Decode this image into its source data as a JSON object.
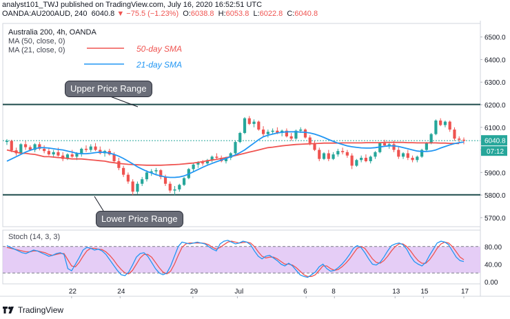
{
  "header": {
    "publisher_line": "analyst101_TWJ published on TradingView.com, July 16, 2020 16:52:51 UTC",
    "symbol": "OANDA:AU200AUD, 240",
    "last": "6040.8",
    "change_icon": "triangle-down-icon",
    "change": "−75.5 (−1.23%)",
    "open_label": "O:",
    "open": "6038.8",
    "high_label": "H:",
    "high": "6053.8",
    "low_label": "L:",
    "low": "6022.8",
    "close_label": "C:",
    "close": "6040.8"
  },
  "legend": {
    "title": "Australia 200, 4h, OANDA",
    "ma1": "MA (50, close, 0)",
    "ma2": "MA (21, close, 0)"
  },
  "annotations": {
    "sma50": "50-day SMA",
    "sma21": "21-day SMA",
    "upper": "Upper Price Range",
    "lower": "Lower Price Range"
  },
  "price_axis": {
    "ticks": [
      "6500.0",
      "6400.0",
      "6300.0",
      "6200.0",
      "6100.0",
      "6000.0",
      "5900.0",
      "5800.0",
      "5700.0"
    ],
    "last_price": "6040.8",
    "countdown": "07:12"
  },
  "stoch": {
    "label": "Stoch (14, 3, 3)",
    "ticks": [
      "80.00",
      "40.00",
      "0.00"
    ]
  },
  "time_axis": {
    "labels": [
      "22",
      "24",
      "29",
      "Jul",
      "6",
      "8",
      "13",
      "15",
      "17"
    ]
  },
  "footer": {
    "brand": "TradingView",
    "logo_icon": "tradingview-logo-icon"
  },
  "colors": {
    "up": "#26a69a",
    "down": "#ef5350",
    "sma50": "#ef5350",
    "sma21": "#2196f3",
    "stoch_k": "#2196f3",
    "stoch_d": "#ef5350",
    "stoch_band": "#e1c4f5",
    "range_line": "#1c4a4a",
    "price_badge": "#26a69a"
  },
  "chart_data": {
    "type": "candlestick",
    "title": "Australia 200, 4h, OANDA",
    "ylim": [
      5660,
      6560
    ],
    "horizontal_lines": [
      {
        "label": "Upper Price Range",
        "y": 6201
      },
      {
        "label": "Lower Price Range",
        "y": 5801
      }
    ],
    "x_labels": [
      "22",
      "24",
      "29",
      "Jul",
      "6",
      "8",
      "13",
      "15",
      "17"
    ],
    "candles": [
      [
        6035,
        6048,
        6022,
        6040
      ],
      [
        6040,
        6045,
        5990,
        5998
      ],
      [
        5998,
        6010,
        5975,
        5985
      ],
      [
        5985,
        6030,
        5980,
        6025
      ],
      [
        6025,
        6040,
        6000,
        6012
      ],
      [
        6012,
        6020,
        5995,
        6000
      ],
      [
        6000,
        6030,
        5990,
        6025
      ],
      [
        6025,
        6035,
        5998,
        6005
      ],
      [
        6005,
        6020,
        5985,
        5995
      ],
      [
        5995,
        6010,
        5975,
        5980
      ],
      [
        5980,
        6000,
        5965,
        5990
      ],
      [
        5990,
        6010,
        5970,
        5975
      ],
      [
        5975,
        5990,
        5950,
        5960
      ],
      [
        5960,
        5985,
        5955,
        5980
      ],
      [
        5980,
        6000,
        5965,
        5970
      ],
      [
        5970,
        5990,
        5955,
        5985
      ],
      [
        5985,
        6010,
        5970,
        6005
      ],
      [
        6005,
        6020,
        5990,
        6000
      ],
      [
        6000,
        6025,
        5990,
        6015
      ],
      [
        6015,
        6030,
        5995,
        6000
      ],
      [
        6000,
        6015,
        5980,
        5985
      ],
      [
        5985,
        6000,
        5970,
        5995
      ],
      [
        5995,
        6005,
        5975,
        5980
      ],
      [
        5980,
        5990,
        5945,
        5950
      ],
      [
        5950,
        5965,
        5910,
        5920
      ],
      [
        5920,
        5930,
        5880,
        5890
      ],
      [
        5890,
        5900,
        5850,
        5860
      ],
      [
        5860,
        5870,
        5800,
        5815
      ],
      [
        5815,
        5860,
        5805,
        5850
      ],
      [
        5850,
        5880,
        5840,
        5870
      ],
      [
        5870,
        5910,
        5860,
        5900
      ],
      [
        5900,
        5915,
        5885,
        5905
      ],
      [
        5905,
        5920,
        5890,
        5910
      ],
      [
        5910,
        5915,
        5870,
        5880
      ],
      [
        5880,
        5890,
        5840,
        5850
      ],
      [
        5850,
        5860,
        5810,
        5820
      ],
      [
        5820,
        5840,
        5800,
        5825
      ],
      [
        5825,
        5850,
        5815,
        5845
      ],
      [
        5845,
        5880,
        5840,
        5875
      ],
      [
        5875,
        5920,
        5870,
        5915
      ],
      [
        5915,
        5940,
        5905,
        5935
      ],
      [
        5935,
        5950,
        5920,
        5945
      ],
      [
        5945,
        5955,
        5930,
        5940
      ],
      [
        5940,
        5960,
        5935,
        5955
      ],
      [
        5955,
        5975,
        5945,
        5970
      ],
      [
        5970,
        5985,
        5960,
        5965
      ],
      [
        5965,
        5975,
        5945,
        5950
      ],
      [
        5950,
        5970,
        5940,
        5965
      ],
      [
        5965,
        5990,
        5955,
        5985
      ],
      [
        5985,
        6040,
        5980,
        6035
      ],
      [
        6035,
        6080,
        6030,
        6075
      ],
      [
        6075,
        6145,
        6070,
        6140
      ],
      [
        6140,
        6150,
        6110,
        6115
      ],
      [
        6115,
        6135,
        6100,
        6125
      ],
      [
        6125,
        6130,
        6085,
        6090
      ],
      [
        6090,
        6105,
        6060,
        6070
      ],
      [
        6070,
        6090,
        6055,
        6080
      ],
      [
        6080,
        6095,
        6070,
        6085
      ],
      [
        6085,
        6100,
        6070,
        6075
      ],
      [
        6075,
        6090,
        6060,
        6085
      ],
      [
        6085,
        6095,
        6055,
        6060
      ],
      [
        6060,
        6075,
        6040,
        6050
      ],
      [
        6050,
        6090,
        6045,
        6085
      ],
      [
        6085,
        6100,
        6075,
        6090
      ],
      [
        6090,
        6095,
        6050,
        6055
      ],
      [
        6055,
        6065,
        6020,
        6030
      ],
      [
        6030,
        6040,
        5995,
        6000
      ],
      [
        6000,
        6010,
        5950,
        5960
      ],
      [
        5960,
        5990,
        5955,
        5985
      ],
      [
        5985,
        6000,
        5950,
        5960
      ],
      [
        5960,
        5990,
        5955,
        5980
      ],
      [
        5980,
        6005,
        5970,
        5995
      ],
      [
        5995,
        6010,
        5980,
        5990
      ],
      [
        5990,
        6000,
        5965,
        5975
      ],
      [
        5975,
        5985,
        5915,
        5930
      ],
      [
        5930,
        5960,
        5925,
        5955
      ],
      [
        5955,
        5975,
        5945,
        5965
      ],
      [
        5965,
        5980,
        5945,
        5950
      ],
      [
        5950,
        5975,
        5940,
        5970
      ],
      [
        5970,
        5995,
        5960,
        5990
      ],
      [
        5990,
        6035,
        5985,
        6030
      ],
      [
        6030,
        6045,
        6015,
        6020
      ],
      [
        6020,
        6035,
        6005,
        6025
      ],
      [
        6025,
        6040,
        5990,
        6000
      ],
      [
        6000,
        6015,
        5960,
        5970
      ],
      [
        5970,
        5990,
        5960,
        5985
      ],
      [
        5985,
        6000,
        5955,
        5965
      ],
      [
        5965,
        5975,
        5945,
        5955
      ],
      [
        5955,
        5975,
        5945,
        5970
      ],
      [
        5970,
        6005,
        5965,
        6000
      ],
      [
        6000,
        6035,
        5995,
        6030
      ],
      [
        6030,
        6075,
        6025,
        6070
      ],
      [
        6070,
        6135,
        6065,
        6130
      ],
      [
        6130,
        6140,
        6105,
        6110
      ],
      [
        6110,
        6130,
        6100,
        6125
      ],
      [
        6125,
        6130,
        6080,
        6090
      ],
      [
        6090,
        6100,
        6040,
        6050
      ],
      [
        6050,
        6060,
        6030,
        6045
      ],
      [
        6045,
        6055,
        6025,
        6040
      ]
    ],
    "series": [
      {
        "name": "MA (50, close, 0)",
        "kind": "line",
        "values": [
          6000,
          5995,
          5990,
          5985,
          5985,
          5982,
          5980,
          5975,
          5970,
          5970,
          5968,
          5966,
          5965,
          5962,
          5960,
          5960,
          5960,
          5958,
          5956,
          5954,
          5952,
          5950,
          5946,
          5943,
          5940,
          5938,
          5936,
          5935,
          5934,
          5933,
          5932,
          5932,
          5932,
          5932,
          5933,
          5934,
          5935,
          5936,
          5938,
          5940,
          5942,
          5945,
          5948,
          5952,
          5955,
          5958,
          5962,
          5966,
          5970,
          5975,
          5980,
          5985,
          5990,
          5995,
          6000,
          6005,
          6010,
          6012,
          6015,
          6018,
          6020,
          6022,
          6024,
          6025,
          6026,
          6027,
          6028,
          6029,
          6030,
          6030,
          6030,
          6030,
          6031,
          6031,
          6031,
          6031,
          6031,
          6032,
          6032,
          6032,
          6032,
          6033,
          6033,
          6033,
          6033,
          6033,
          6032,
          6032,
          6031,
          6031,
          6031,
          6031,
          6031,
          6030,
          6030,
          6029,
          6029,
          6028
        ]
      },
      {
        "name": "MA (21, close, 0)",
        "kind": "line",
        "values": [
          5950,
          5960,
          5970,
          5980,
          5990,
          5998,
          6005,
          6010,
          6010,
          6008,
          6005,
          6002,
          6000,
          5995,
          5990,
          5985,
          5983,
          5983,
          5985,
          5988,
          5990,
          5989,
          5986,
          5980,
          5972,
          5962,
          5950,
          5938,
          5925,
          5915,
          5905,
          5898,
          5890,
          5885,
          5880,
          5878,
          5878,
          5880,
          5885,
          5893,
          5903,
          5913,
          5923,
          5932,
          5940,
          5948,
          5955,
          5962,
          5970,
          5978,
          5988,
          6000,
          6015,
          6030,
          6045,
          6058,
          6065,
          6070,
          6075,
          6078,
          6080,
          6080,
          6080,
          6079,
          6078,
          6075,
          6070,
          6063,
          6055,
          6046,
          6038,
          6030,
          6024,
          6018,
          6014,
          6011,
          6009,
          6008,
          6008,
          6010,
          6013,
          6016,
          6018,
          6018,
          6015,
          6010,
          6005,
          6000,
          5995,
          5993,
          5993,
          5995,
          6000,
          6008,
          6015,
          6022,
          6028,
          6032,
          6035
        ]
      }
    ],
    "stochastic": {
      "name": "Stoch (14, 3, 3)",
      "ylim": [
        0,
        100
      ],
      "bands": [
        20,
        80
      ],
      "k": [
        82,
        78,
        74,
        70,
        66,
        64,
        68,
        72,
        70,
        66,
        62,
        58,
        60,
        64,
        66,
        62,
        30,
        25,
        40,
        55,
        72,
        78,
        76,
        72,
        74,
        70,
        62,
        50,
        38,
        26,
        16,
        14,
        22,
        38,
        56,
        64,
        66,
        58,
        44,
        30,
        20,
        16,
        20,
        36,
        58,
        80,
        90,
        88,
        86,
        88,
        90,
        88,
        86,
        80,
        74,
        70,
        86,
        92,
        94,
        90,
        86,
        88,
        92,
        90,
        84,
        70,
        58,
        52,
        58,
        60,
        54,
        48,
        40,
        36,
        42,
        36,
        26,
        16,
        12,
        10,
        16,
        22,
        34,
        40,
        30,
        24,
        26,
        32,
        40,
        50,
        62,
        76,
        82,
        78,
        66,
        52,
        40,
        38,
        44,
        56,
        70,
        82,
        86,
        88,
        84,
        74,
        58,
        46,
        40,
        36,
        44,
        60,
        74,
        88,
        92,
        90,
        84,
        70,
        56,
        48,
        46
      ],
      "d": [
        78,
        76,
        74,
        72,
        70,
        68,
        68,
        70,
        70,
        68,
        66,
        62,
        60,
        62,
        64,
        64,
        50,
        36,
        34,
        44,
        58,
        70,
        76,
        76,
        74,
        73,
        68,
        60,
        50,
        38,
        28,
        20,
        18,
        26,
        40,
        54,
        62,
        62,
        56,
        44,
        32,
        22,
        18,
        24,
        40,
        60,
        78,
        86,
        88,
        88,
        88,
        88,
        87,
        84,
        78,
        74,
        78,
        84,
        90,
        92,
        90,
        88,
        89,
        90,
        88,
        80,
        68,
        58,
        54,
        56,
        56,
        52,
        46,
        40,
        40,
        38,
        32,
        24,
        16,
        12,
        12,
        16,
        26,
        36,
        36,
        30,
        26,
        28,
        34,
        42,
        52,
        64,
        76,
        80,
        76,
        64,
        52,
        44,
        42,
        48,
        58,
        70,
        80,
        86,
        86,
        80,
        70,
        58,
        48,
        42,
        42,
        50,
        62,
        76,
        86,
        90,
        88,
        80,
        68,
        56,
        50
      ]
    }
  }
}
